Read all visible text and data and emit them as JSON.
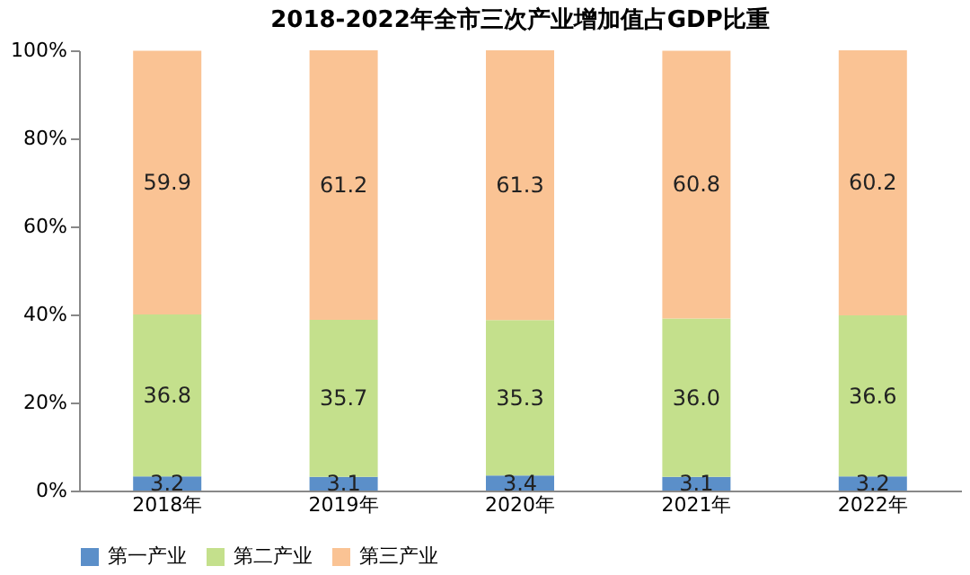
{
  "chart_data": {
    "type": "bar",
    "stacked": true,
    "title": "2018-2022年全市三次产业增加值占GDP比重",
    "categories": [
      "2018年",
      "2019年",
      "2020年",
      "2021年",
      "2022年"
    ],
    "series": [
      {
        "name": "第一产业",
        "color": "#5b8fc9",
        "values": [
          3.2,
          3.1,
          3.4,
          3.1,
          3.2
        ]
      },
      {
        "name": "第二产业",
        "color": "#c4e08c",
        "values": [
          36.8,
          35.7,
          35.3,
          36.0,
          36.6
        ],
        "value_labels": [
          "36.8",
          "35.7",
          "35.3",
          "36.0",
          "36.6"
        ]
      },
      {
        "name": "第三产业",
        "color": "#fac394",
        "values": [
          59.9,
          61.2,
          61.3,
          60.8,
          60.2
        ]
      }
    ],
    "ylim": [
      0,
      100
    ],
    "yticks": [
      {
        "value": 0,
        "label": "0%"
      },
      {
        "value": 20,
        "label": "20%"
      },
      {
        "value": 40,
        "label": "40%"
      },
      {
        "value": 60,
        "label": "60%"
      },
      {
        "value": 80,
        "label": "80%"
      },
      {
        "value": 100,
        "label": "100%"
      }
    ],
    "data_labels": true,
    "legend": "bottom",
    "grid": false
  }
}
